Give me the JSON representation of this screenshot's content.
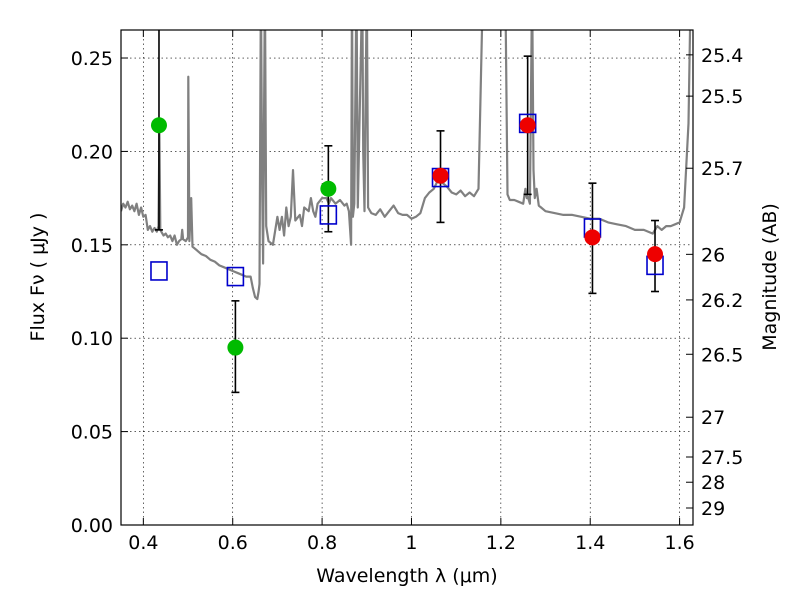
{
  "chart_data": {
    "type": "scatter",
    "xlabel": "Wavelength  λ (μm)",
    "ylabel": "Flux  Fν  ( μJy )",
    "ylabel_right": "Magnitude (AB)",
    "xlim": [
      0.35,
      1.63
    ],
    "ylim": [
      0.0,
      0.265
    ],
    "x_ticks": [
      0.4,
      0.6,
      0.8,
      1.0,
      1.2,
      1.4,
      1.6
    ],
    "x_tick_labels": [
      "0.4",
      "0.6",
      "0.8",
      "1",
      "1.2",
      "1.4",
      "1.6"
    ],
    "y_ticks": [
      0.0,
      0.05,
      0.1,
      0.15,
      0.2,
      0.25
    ],
    "y_tick_labels": [
      "0.00",
      "0.05",
      "0.10",
      "0.15",
      "0.20",
      "0.25"
    ],
    "right_ticks": [
      {
        "label": "25.4",
        "flux": 0.2517
      },
      {
        "label": "25.5",
        "flux": 0.2296
      },
      {
        "label": "25.7",
        "flux": 0.191
      },
      {
        "label": "26",
        "flux": 0.1449
      },
      {
        "label": "26.2",
        "flux": 0.1205
      },
      {
        "label": "26.5",
        "flux": 0.0914
      },
      {
        "label": "27",
        "flux": 0.0577
      },
      {
        "label": "27.5",
        "flux": 0.0364
      },
      {
        "label": "28",
        "flux": 0.0229
      },
      {
        "label": "29",
        "flux": 0.0091
      }
    ],
    "grid": true,
    "model_spectrum": {
      "color": "#808080",
      "points": [
        [
          0.35,
          0.168
        ],
        [
          0.355,
          0.172
        ],
        [
          0.36,
          0.17
        ],
        [
          0.365,
          0.173
        ],
        [
          0.37,
          0.169
        ],
        [
          0.375,
          0.171
        ],
        [
          0.38,
          0.168
        ],
        [
          0.385,
          0.172
        ],
        [
          0.39,
          0.166
        ],
        [
          0.395,
          0.17
        ],
        [
          0.4,
          0.165
        ],
        [
          0.405,
          0.166
        ],
        [
          0.41,
          0.158
        ],
        [
          0.415,
          0.16
        ],
        [
          0.42,
          0.157
        ],
        [
          0.425,
          0.159
        ],
        [
          0.43,
          0.157
        ],
        [
          0.434,
          0.16
        ],
        [
          0.436,
          0.21
        ],
        [
          0.438,
          0.158
        ],
        [
          0.445,
          0.155
        ],
        [
          0.45,
          0.156
        ],
        [
          0.455,
          0.154
        ],
        [
          0.46,
          0.155
        ],
        [
          0.465,
          0.152
        ],
        [
          0.47,
          0.155
        ],
        [
          0.475,
          0.15
        ],
        [
          0.48,
          0.152
        ],
        [
          0.485,
          0.153
        ],
        [
          0.487,
          0.158
        ],
        [
          0.489,
          0.153
        ],
        [
          0.495,
          0.152
        ],
        [
          0.5,
          0.154
        ],
        [
          0.5005,
          0.24
        ],
        [
          0.503,
          0.152
        ],
        [
          0.507,
          0.175
        ],
        [
          0.51,
          0.149
        ],
        [
          0.52,
          0.147
        ],
        [
          0.53,
          0.145
        ],
        [
          0.54,
          0.144
        ],
        [
          0.55,
          0.142
        ],
        [
          0.56,
          0.141
        ],
        [
          0.57,
          0.139
        ],
        [
          0.58,
          0.138
        ],
        [
          0.59,
          0.137
        ],
        [
          0.6,
          0.136
        ],
        [
          0.61,
          0.135
        ],
        [
          0.62,
          0.134
        ],
        [
          0.63,
          0.133
        ],
        [
          0.64,
          0.133
        ],
        [
          0.645,
          0.127
        ],
        [
          0.65,
          0.122
        ],
        [
          0.655,
          0.121
        ],
        [
          0.658,
          0.125
        ],
        [
          0.66,
          0.129
        ],
        [
          0.663,
          0.29
        ],
        [
          0.666,
          0.18
        ],
        [
          0.668,
          0.14
        ],
        [
          0.672,
          0.29
        ],
        [
          0.675,
          0.16
        ],
        [
          0.68,
          0.152
        ],
        [
          0.69,
          0.15
        ],
        [
          0.7,
          0.165
        ],
        [
          0.705,
          0.158
        ],
        [
          0.71,
          0.165
        ],
        [
          0.715,
          0.155
        ],
        [
          0.72,
          0.17
        ],
        [
          0.725,
          0.16
        ],
        [
          0.73,
          0.165
        ],
        [
          0.735,
          0.19
        ],
        [
          0.74,
          0.163
        ],
        [
          0.75,
          0.166
        ],
        [
          0.755,
          0.16
        ],
        [
          0.76,
          0.17
        ],
        [
          0.77,
          0.168
        ],
        [
          0.775,
          0.175
        ],
        [
          0.78,
          0.168
        ],
        [
          0.785,
          0.165
        ],
        [
          0.79,
          0.172
        ],
        [
          0.8,
          0.175
        ],
        [
          0.81,
          0.175
        ],
        [
          0.815,
          0.172
        ],
        [
          0.82,
          0.175
        ],
        [
          0.83,
          0.172
        ],
        [
          0.84,
          0.174
        ],
        [
          0.85,
          0.171
        ],
        [
          0.855,
          0.172
        ],
        [
          0.86,
          0.168
        ],
        [
          0.865,
          0.15
        ],
        [
          0.867,
          0.29
        ],
        [
          0.869,
          0.165
        ],
        [
          0.872,
          0.172
        ],
        [
          0.877,
          0.29
        ],
        [
          0.88,
          0.17
        ],
        [
          0.89,
          0.29
        ],
        [
          0.892,
          0.2
        ],
        [
          0.895,
          0.168
        ],
        [
          0.9,
          0.29
        ],
        [
          0.903,
          0.17
        ],
        [
          0.91,
          0.167
        ],
        [
          0.92,
          0.166
        ],
        [
          0.93,
          0.169
        ],
        [
          0.94,
          0.165
        ],
        [
          0.95,
          0.168
        ],
        [
          0.96,
          0.171
        ],
        [
          0.97,
          0.167
        ],
        [
          0.98,
          0.166
        ],
        [
          0.99,
          0.166
        ],
        [
          1.0,
          0.164
        ],
        [
          1.01,
          0.165
        ],
        [
          1.02,
          0.167
        ],
        [
          1.03,
          0.175
        ],
        [
          1.04,
          0.178
        ],
        [
          1.05,
          0.18
        ],
        [
          1.06,
          0.185
        ],
        [
          1.07,
          0.183
        ],
        [
          1.08,
          0.181
        ],
        [
          1.09,
          0.178
        ],
        [
          1.1,
          0.177
        ],
        [
          1.11,
          0.179
        ],
        [
          1.12,
          0.176
        ],
        [
          1.13,
          0.178
        ],
        [
          1.14,
          0.176
        ],
        [
          1.15,
          0.18
        ],
        [
          1.16,
          0.29
        ],
        [
          1.21,
          0.29
        ],
        [
          1.215,
          0.177
        ],
        [
          1.22,
          0.174
        ],
        [
          1.23,
          0.174
        ],
        [
          1.24,
          0.173
        ],
        [
          1.25,
          0.172
        ],
        [
          1.255,
          0.18
        ],
        [
          1.258,
          0.175
        ],
        [
          1.26,
          0.176
        ],
        [
          1.265,
          0.172
        ],
        [
          1.27,
          0.29
        ],
        [
          1.273,
          0.19
        ],
        [
          1.276,
          0.175
        ],
        [
          1.28,
          0.18
        ],
        [
          1.285,
          0.171
        ],
        [
          1.29,
          0.17
        ],
        [
          1.3,
          0.168
        ],
        [
          1.32,
          0.167
        ],
        [
          1.34,
          0.166
        ],
        [
          1.36,
          0.166
        ],
        [
          1.38,
          0.165
        ],
        [
          1.4,
          0.164
        ],
        [
          1.42,
          0.164
        ],
        [
          1.44,
          0.162
        ],
        [
          1.46,
          0.161
        ],
        [
          1.48,
          0.16
        ],
        [
          1.5,
          0.158
        ],
        [
          1.52,
          0.158
        ],
        [
          1.54,
          0.156
        ],
        [
          1.545,
          0.158
        ],
        [
          1.55,
          0.16
        ],
        [
          1.56,
          0.158
        ],
        [
          1.57,
          0.16
        ],
        [
          1.58,
          0.16
        ],
        [
          1.59,
          0.161
        ],
        [
          1.6,
          0.162
        ],
        [
          1.61,
          0.17
        ],
        [
          1.62,
          0.215
        ],
        [
          1.625,
          0.29
        ]
      ]
    },
    "series": [
      {
        "marker": "open-square",
        "color": "#0000cc",
        "points": [
          {
            "x": 0.435,
            "y": 0.136
          },
          {
            "x": 0.606,
            "y": 0.133
          },
          {
            "x": 0.814,
            "y": 0.166
          },
          {
            "x": 1.065,
            "y": 0.186
          },
          {
            "x": 1.26,
            "y": 0.215
          },
          {
            "x": 1.405,
            "y": 0.159
          },
          {
            "x": 1.545,
            "y": 0.139
          }
        ]
      },
      {
        "marker": "filled-circle",
        "color": "#00bb00",
        "points": [
          {
            "x": 0.435,
            "y": 0.214,
            "err_low": 0.158,
            "err_high": 0.29
          },
          {
            "x": 0.606,
            "y": 0.095,
            "err_low": 0.071,
            "err_high": 0.12
          },
          {
            "x": 0.814,
            "y": 0.18,
            "err_low": 0.157,
            "err_high": 0.203
          }
        ]
      },
      {
        "marker": "filled-circle",
        "color": "#ee0000",
        "points": [
          {
            "x": 1.065,
            "y": 0.187,
            "err_low": 0.162,
            "err_high": 0.211
          },
          {
            "x": 1.26,
            "y": 0.214,
            "err_low": 0.177,
            "err_high": 0.251
          },
          {
            "x": 1.405,
            "y": 0.154,
            "err_low": 0.124,
            "err_high": 0.183
          },
          {
            "x": 1.545,
            "y": 0.145,
            "err_low": 0.125,
            "err_high": 0.163
          }
        ]
      }
    ]
  }
}
